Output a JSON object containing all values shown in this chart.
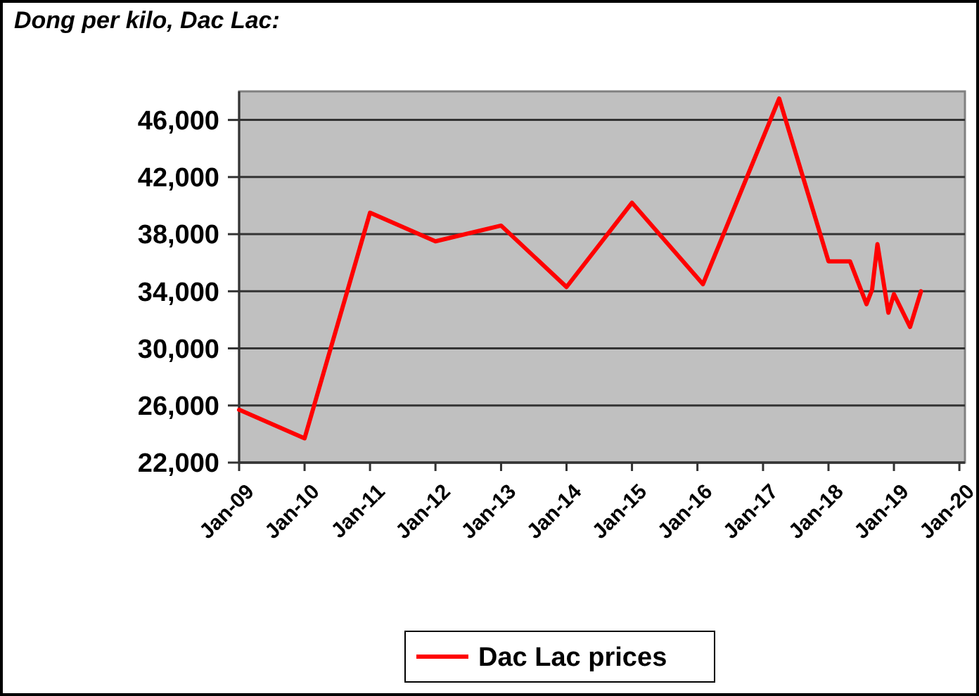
{
  "chart_data": {
    "type": "line",
    "title": "Dong per kilo, Dac Lac:",
    "x": [
      "2009-01",
      "2010-01",
      "2011-01",
      "2012-01",
      "2013-01",
      "2014-01",
      "2015-01",
      "2016-02",
      "2017-04",
      "2018-01",
      "2018-05",
      "2018-08",
      "2018-09",
      "2018-10",
      "2018-12",
      "2019-01",
      "2019-04",
      "2019-06"
    ],
    "series": [
      {
        "name": "Dac Lac prices",
        "color": "#ff0000",
        "values": [
          25700,
          23700,
          39500,
          37500,
          38600,
          34300,
          40200,
          34500,
          47500,
          36100,
          36100,
          33100,
          34100,
          37300,
          32500,
          33800,
          31500,
          34000
        ]
      }
    ],
    "xlim": [
      "2009-01",
      "2020-02"
    ],
    "xticks": [
      {
        "value": "2009-01",
        "label": "Jan-09"
      },
      {
        "value": "2010-01",
        "label": "Jan-10"
      },
      {
        "value": "2011-01",
        "label": "Jan-11"
      },
      {
        "value": "2012-01",
        "label": "Jan-12"
      },
      {
        "value": "2013-01",
        "label": "Jan-13"
      },
      {
        "value": "2014-01",
        "label": "Jan-14"
      },
      {
        "value": "2015-01",
        "label": "Jan-15"
      },
      {
        "value": "2016-01",
        "label": "Jan-16"
      },
      {
        "value": "2017-01",
        "label": "Jan-17"
      },
      {
        "value": "2018-01",
        "label": "Jan-18"
      },
      {
        "value": "2019-01",
        "label": "Jan-19"
      },
      {
        "value": "2020-01",
        "label": "Jan-20"
      }
    ],
    "ylim": [
      22000,
      48000
    ],
    "yticks": [
      {
        "value": 22000,
        "label": "22,000"
      },
      {
        "value": 26000,
        "label": "26,000"
      },
      {
        "value": 30000,
        "label": "30,000"
      },
      {
        "value": 34000,
        "label": "34,000"
      },
      {
        "value": 38000,
        "label": "38,000"
      },
      {
        "value": 42000,
        "label": "42,000"
      },
      {
        "value": 46000,
        "label": "46,000"
      }
    ],
    "grid": "y",
    "legend": "bottom",
    "marker": "none",
    "line_style": "solid"
  }
}
